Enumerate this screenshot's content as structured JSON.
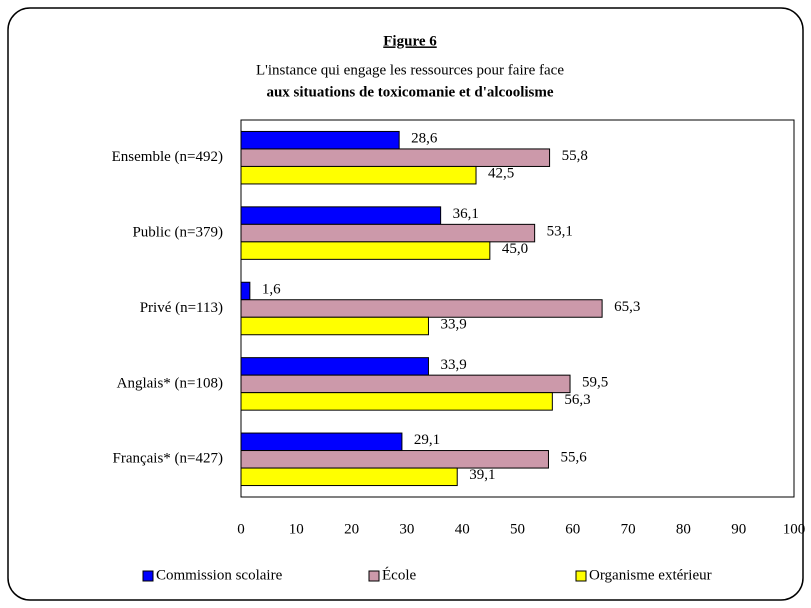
{
  "chart_data": {
    "type": "barh",
    "title": "Figure 6",
    "subtitle": [
      "L'instance qui engage les ressources pour faire face",
      "aux situations de toxicomanie et d'alcoolisme"
    ],
    "categories": [
      "Ensemble (n=492)",
      "Public (n=379)",
      "Privé (n=113)",
      "Anglais* (n=108)",
      "Français* (n=427)"
    ],
    "series": [
      {
        "name": "Commission scolaire",
        "color": "#0000ff",
        "values": [
          28.6,
          36.1,
          1.6,
          33.9,
          29.1
        ],
        "value_labels": [
          "28,6",
          "36,1",
          "1,6",
          "33,9",
          "29,1"
        ]
      },
      {
        "name": "École",
        "color": "#cc99aa",
        "values": [
          55.8,
          53.1,
          65.3,
          59.5,
          55.6
        ],
        "value_labels": [
          "55,8",
          "53,1",
          "65,3",
          "59,5",
          "55,6"
        ]
      },
      {
        "name": "Organisme extérieur",
        "color": "#ffff00",
        "values": [
          42.5,
          45.0,
          33.9,
          56.3,
          39.1
        ],
        "value_labels": [
          "42,5",
          "45,0",
          "33,9",
          "56,3",
          "39,1"
        ]
      }
    ],
    "xlim": [
      0,
      100
    ],
    "xticks": [
      0,
      10,
      20,
      30,
      40,
      50,
      60,
      70,
      80,
      90,
      100
    ],
    "grid": false,
    "legend": "bottom"
  }
}
